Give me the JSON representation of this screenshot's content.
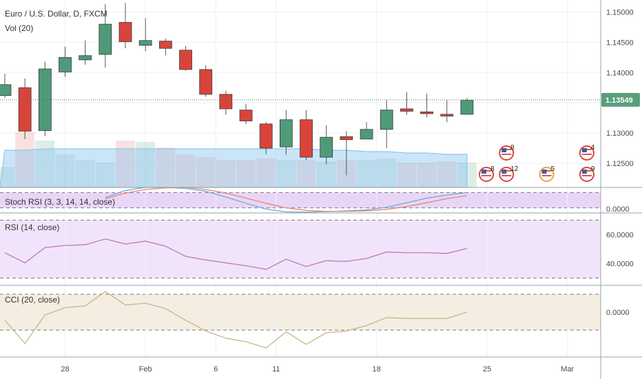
{
  "header": {
    "symbol_title": "Euro / U.S. Dollar, D, FXCM",
    "volume_label": "Vol (20)"
  },
  "colors": {
    "up": "#4f9a78",
    "down": "#d9443a",
    "price_tag": "#5a9e7c",
    "stoch_k": "#6fa8dc",
    "stoch_d": "#e8837a",
    "rsi": "#c078b8",
    "cci": "#c9b48a",
    "volume": "#8cc6f0"
  },
  "chart_data": [
    {
      "type": "candlestick",
      "name": "price",
      "x_labels": [
        "28",
        "Feb",
        "6",
        "11",
        "18",
        "25",
        "Mar"
      ],
      "y_ticks": [
        "1.15000",
        "1.14500",
        "1.14000",
        "1.13500",
        "1.13000",
        "1.12500"
      ],
      "last_price_label": "1.13549",
      "last_price": 1.13549,
      "ylim": [
        1.121,
        1.152
      ],
      "candles": [
        {
          "o": 1.1362,
          "h": 1.1398,
          "l": 1.1358,
          "c": 1.138
        },
        {
          "o": 1.1375,
          "h": 1.139,
          "l": 1.129,
          "c": 1.1303
        },
        {
          "o": 1.1304,
          "h": 1.1418,
          "l": 1.1295,
          "c": 1.1406
        },
        {
          "o": 1.1401,
          "h": 1.1443,
          "l": 1.1393,
          "c": 1.1425
        },
        {
          "o": 1.1421,
          "h": 1.1453,
          "l": 1.1413,
          "c": 1.1428
        },
        {
          "o": 1.143,
          "h": 1.1513,
          "l": 1.1408,
          "c": 1.148
        },
        {
          "o": 1.1483,
          "h": 1.1515,
          "l": 1.144,
          "c": 1.1451
        },
        {
          "o": 1.1445,
          "h": 1.149,
          "l": 1.1435,
          "c": 1.1453
        },
        {
          "o": 1.1452,
          "h": 1.1456,
          "l": 1.1428,
          "c": 1.144
        },
        {
          "o": 1.1437,
          "h": 1.1444,
          "l": 1.1403,
          "c": 1.1405
        },
        {
          "o": 1.1405,
          "h": 1.1412,
          "l": 1.136,
          "c": 1.1364
        },
        {
          "o": 1.1364,
          "h": 1.137,
          "l": 1.133,
          "c": 1.134
        },
        {
          "o": 1.1338,
          "h": 1.1348,
          "l": 1.1315,
          "c": 1.132
        },
        {
          "o": 1.1315,
          "h": 1.1318,
          "l": 1.1265,
          "c": 1.1275
        },
        {
          "o": 1.1277,
          "h": 1.1338,
          "l": 1.1264,
          "c": 1.1322
        },
        {
          "o": 1.1322,
          "h": 1.1338,
          "l": 1.1255,
          "c": 1.126
        },
        {
          "o": 1.126,
          "h": 1.1313,
          "l": 1.1248,
          "c": 1.1293
        },
        {
          "o": 1.1294,
          "h": 1.1303,
          "l": 1.123,
          "c": 1.1289
        },
        {
          "o": 1.129,
          "h": 1.1318,
          "l": 1.129,
          "c": 1.1306
        },
        {
          "o": 1.1306,
          "h": 1.1355,
          "l": 1.1275,
          "c": 1.1338
        },
        {
          "o": 1.134,
          "h": 1.1368,
          "l": 1.133,
          "c": 1.1336
        },
        {
          "o": 1.1335,
          "h": 1.1365,
          "l": 1.1326,
          "c": 1.1332
        },
        {
          "o": 1.1331,
          "h": 1.1355,
          "l": 1.1318,
          "c": 1.1328
        },
        {
          "o": 1.1331,
          "h": 1.1358,
          "l": 1.133,
          "c": 1.1354
        }
      ],
      "volume": {
        "label": "Vol (20)",
        "max": 100,
        "bars": [
          15,
          40,
          34,
          24,
          20,
          18,
          34,
          33,
          29,
          24,
          22,
          20,
          20,
          21,
          20,
          20,
          19,
          20,
          20,
          21,
          18,
          18,
          19,
          18
        ],
        "ma": [
          27,
          27,
          28,
          28,
          28,
          28,
          28,
          28,
          28,
          28,
          28,
          28,
          28,
          28,
          28,
          28,
          27,
          27,
          26,
          26,
          25,
          25,
          24,
          24
        ]
      },
      "events": [
        {
          "count": "8",
          "row": "lower",
          "slot": 24
        },
        {
          "count": "8",
          "row": "upper",
          "slot": 25
        },
        {
          "count": "12",
          "row": "lower",
          "slot": 25
        },
        {
          "count": "5",
          "row": "lower",
          "slot": 27
        },
        {
          "count": "4",
          "row": "upper",
          "slot": 29
        },
        {
          "count": "9",
          "row": "lower",
          "slot": 29
        }
      ]
    },
    {
      "type": "line",
      "name": "stoch",
      "label": "Stoch RSI (3, 3, 14, 14, close)",
      "y_ticks": [
        "0.0000"
      ],
      "ylim": [
        0,
        100
      ],
      "levels": [
        80,
        20
      ],
      "series": [
        {
          "values": [
            null,
            null,
            null,
            null,
            null,
            60,
            88,
            100,
            100,
            96,
            85,
            62,
            38,
            15,
            4,
            3,
            5,
            8,
            12,
            22,
            40,
            58,
            70,
            80
          ]
        },
        {
          "values": [
            null,
            null,
            null,
            null,
            null,
            55,
            78,
            92,
            98,
            100,
            92,
            78,
            58,
            38,
            20,
            10,
            6,
            6,
            8,
            14,
            25,
            40,
            56,
            68
          ]
        }
      ]
    },
    {
      "type": "line",
      "name": "rsi",
      "label": "RSI (14, close)",
      "y_ticks": [
        "60.0000",
        "40.0000"
      ],
      "ylim": [
        25,
        75
      ],
      "levels": [
        70,
        30
      ],
      "series": [
        {
          "values": [
            47.5,
            40.5,
            51,
            52.5,
            53,
            57,
            53.5,
            55.5,
            52,
            45,
            42.5,
            40.5,
            38.5,
            36,
            43,
            38,
            42,
            41.5,
            43.5,
            48,
            47.5,
            47.5,
            47,
            50.5
          ]
        }
      ]
    },
    {
      "type": "line",
      "name": "cci",
      "label": "CCI (20, close)",
      "y_ticks": [
        "0.0000"
      ],
      "ylim": [
        -250,
        150
      ],
      "levels": [
        100,
        -100
      ],
      "series": [
        {
          "values": [
            -45,
            -175,
            -15,
            25,
            35,
            115,
            40,
            50,
            20,
            -45,
            -105,
            -145,
            -165,
            -200,
            -110,
            -180,
            -115,
            -105,
            -75,
            -30,
            -35,
            -35,
            -35,
            0
          ]
        }
      ]
    }
  ]
}
